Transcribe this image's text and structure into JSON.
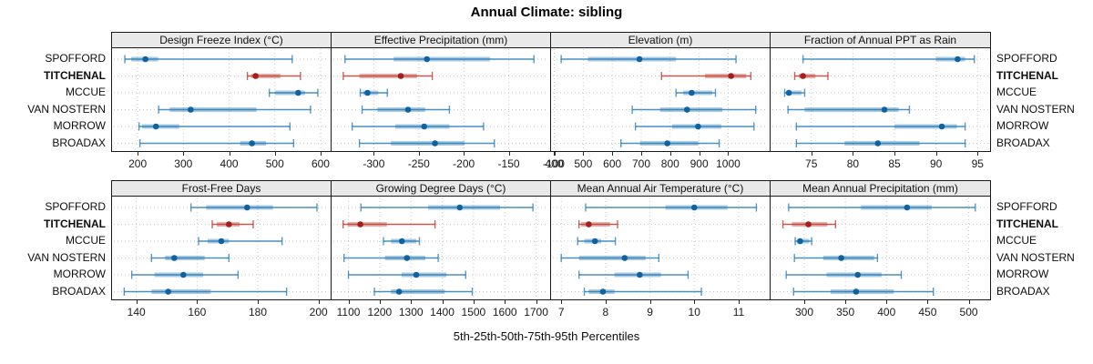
{
  "title": "Annual Climate: sibling",
  "caption": "5th-25th-50th-75th-95th Percentiles",
  "percentile_labels": [
    "5th",
    "25th",
    "50th",
    "75th",
    "95th"
  ],
  "sites": [
    "SPOFFORD",
    "TITCHENAL",
    "MCCUE",
    "VAN NOSTERN",
    "MORROW",
    "BROADAX"
  ],
  "highlight_site": "TITCHENAL",
  "colors": {
    "blue_line": "#1F77B4",
    "blue_dot": "#0F62A0",
    "red_line": "#BE3126",
    "red_dot": "#A31F1B",
    "grid": "#C9C9C9",
    "strip_bg": "#E9E9E9",
    "border": "#1a1a1a"
  },
  "chart_data": [
    {
      "type": "interval-dotplot",
      "title": "Design Freeze Index (°C)",
      "xlim": [
        144,
        622
      ],
      "ticks": [
        200,
        300,
        400,
        500,
        600
      ],
      "series": [
        {
          "name": "SPOFFORD",
          "values": [
            172,
            186,
            217,
            245,
            538
          ]
        },
        {
          "name": "TITCHENAL",
          "values": [
            440,
            448,
            458,
            512,
            556
          ]
        },
        {
          "name": "MCCUE",
          "values": [
            488,
            500,
            551,
            566,
            594
          ]
        },
        {
          "name": "VAN NOSTERN",
          "values": [
            246,
            270,
            316,
            460,
            578
          ]
        },
        {
          "name": "MORROW",
          "values": [
            203,
            210,
            240,
            291,
            533
          ]
        },
        {
          "name": "BROADAX",
          "values": [
            205,
            424,
            450,
            481,
            541
          ]
        }
      ]
    },
    {
      "type": "interval-dotplot",
      "title": "Effective Precipitation (mm)",
      "xlim": [
        -347,
        -104
      ],
      "ticks": [
        -300,
        -250,
        -200,
        -150,
        -100
      ],
      "series": [
        {
          "name": "SPOFFORD",
          "values": [
            -332,
            -278,
            -241,
            -171,
            -122
          ]
        },
        {
          "name": "TITCHENAL",
          "values": [
            -334,
            -316,
            -270,
            -252,
            -235
          ]
        },
        {
          "name": "MCCUE",
          "values": [
            -315,
            -312,
            -307,
            -295,
            -285
          ]
        },
        {
          "name": "VAN NOSTERN",
          "values": [
            -313,
            -296,
            -262,
            -243,
            -216
          ]
        },
        {
          "name": "MORROW",
          "values": [
            -324,
            -276,
            -244,
            -216,
            -178
          ]
        },
        {
          "name": "BROADAX",
          "values": [
            -316,
            -281,
            -232,
            -199,
            -166
          ]
        }
      ]
    },
    {
      "type": "interval-dotplot",
      "title": "Elevation (m)",
      "xlim": [
        389,
        1143
      ],
      "ticks": [
        400,
        500,
        600,
        700,
        800,
        900,
        1000
      ],
      "series": [
        {
          "name": "SPOFFORD",
          "values": [
            424,
            516,
            694,
            820,
            1027
          ]
        },
        {
          "name": "TITCHENAL",
          "values": [
            770,
            920,
            1010,
            1062,
            1078
          ]
        },
        {
          "name": "MCCUE",
          "values": [
            820,
            845,
            874,
            945,
            956
          ]
        },
        {
          "name": "VAN NOSTERN",
          "values": [
            669,
            765,
            858,
            980,
            1095
          ]
        },
        {
          "name": "MORROW",
          "values": [
            680,
            807,
            896,
            976,
            1089
          ]
        },
        {
          "name": "BROADAX",
          "values": [
            630,
            696,
            790,
            897,
            969
          ]
        }
      ]
    },
    {
      "type": "interval-dotplot",
      "title": "Fraction of Annual PPT as Rain",
      "xlim": [
        70.1,
        96.5
      ],
      "ticks": [
        75,
        80,
        85,
        90,
        95
      ],
      "series": [
        {
          "name": "SPOFFORD",
          "values": [
            74,
            90,
            92.6,
            93.5,
            94.6
          ]
        },
        {
          "name": "TITCHENAL",
          "values": [
            73,
            73.5,
            74,
            75.5,
            77
          ]
        },
        {
          "name": "MCCUE",
          "values": [
            71.8,
            72,
            72.3,
            73.8,
            74.2
          ]
        },
        {
          "name": "VAN NOSTERN",
          "values": [
            72.2,
            74.2,
            83.8,
            85.5,
            86.8
          ]
        },
        {
          "name": "MORROW",
          "values": [
            73.2,
            85,
            90.7,
            92.5,
            93.5
          ]
        },
        {
          "name": "BROADAX",
          "values": [
            73.2,
            79,
            83,
            88,
            93.5
          ]
        }
      ]
    },
    {
      "type": "interval-dotplot",
      "title": "Frost-Free Days",
      "xlim": [
        132,
        204
      ],
      "ticks": [
        140,
        160,
        180,
        200
      ],
      "series": [
        {
          "name": "SPOFFORD",
          "values": [
            158,
            163,
            176.5,
            185,
            199.5
          ]
        },
        {
          "name": "TITCHENAL",
          "values": [
            165,
            166.5,
            170.5,
            174,
            178.5
          ]
        },
        {
          "name": "MCCUE",
          "values": [
            160.5,
            163.5,
            168,
            170.5,
            188
          ]
        },
        {
          "name": "VAN NOSTERN",
          "values": [
            145,
            149.5,
            152.5,
            162.5,
            170.5
          ]
        },
        {
          "name": "MORROW",
          "values": [
            138.5,
            146,
            155.5,
            162,
            173.5
          ]
        },
        {
          "name": "BROADAX",
          "values": [
            136,
            145,
            150.5,
            164.5,
            189.5
          ]
        }
      ]
    },
    {
      "type": "interval-dotplot",
      "title": "Growing Degree Days (°C)",
      "xlim": [
        1046,
        1745
      ],
      "ticks": [
        1100,
        1200,
        1300,
        1400,
        1500,
        1600,
        1700
      ],
      "series": [
        {
          "name": "SPOFFORD",
          "values": [
            1140,
            1355,
            1456,
            1585,
            1690
          ]
        },
        {
          "name": "TITCHENAL",
          "values": [
            1083,
            1097,
            1138,
            1223,
            1377
          ]
        },
        {
          "name": "MCCUE",
          "values": [
            1212,
            1236,
            1271,
            1317,
            1327
          ]
        },
        {
          "name": "VAN NOSTERN",
          "values": [
            1086,
            1217,
            1287,
            1346,
            1387
          ]
        },
        {
          "name": "MORROW",
          "values": [
            1100,
            1270,
            1317,
            1413,
            1475
          ]
        },
        {
          "name": "BROADAX",
          "values": [
            1183,
            1236,
            1262,
            1408,
            1496
          ]
        }
      ]
    },
    {
      "type": "interval-dotplot",
      "title": "Mean Annual Air Temperature (°C)",
      "xlim": [
        6.77,
        11.7
      ],
      "ticks": [
        7,
        8,
        9,
        10,
        11
      ],
      "series": [
        {
          "name": "SPOFFORD",
          "values": [
            7.55,
            9.35,
            10.0,
            10.75,
            11.4
          ]
        },
        {
          "name": "TITCHENAL",
          "values": [
            7.4,
            7.45,
            7.62,
            8.1,
            8.27
          ]
        },
        {
          "name": "MCCUE",
          "values": [
            7.37,
            7.52,
            7.76,
            7.9,
            8.22
          ]
        },
        {
          "name": "VAN NOSTERN",
          "values": [
            7.0,
            7.4,
            8.43,
            8.9,
            9.2
          ]
        },
        {
          "name": "MORROW",
          "values": [
            7.4,
            8.2,
            8.77,
            9.25,
            9.86
          ]
        },
        {
          "name": "BROADAX",
          "values": [
            7.52,
            7.62,
            7.94,
            8.2,
            10.16
          ]
        }
      ]
    },
    {
      "type": "interval-dotplot",
      "title": "Mean Annual Precipitation (mm)",
      "xlim": [
        259,
        526
      ],
      "ticks": [
        300,
        350,
        400,
        450,
        500
      ],
      "series": [
        {
          "name": "SPOFFORD",
          "values": [
            281,
            369,
            425,
            455,
            508
          ]
        },
        {
          "name": "TITCHENAL",
          "values": [
            274,
            285,
            305,
            328,
            338
          ]
        },
        {
          "name": "MCCUE",
          "values": [
            289,
            291,
            295,
            306,
            309
          ]
        },
        {
          "name": "VAN NOSTERN",
          "values": [
            288,
            323,
            345,
            385,
            389
          ]
        },
        {
          "name": "MORROW",
          "values": [
            278,
            327,
            365,
            394,
            418
          ]
        },
        {
          "name": "BROADAX",
          "values": [
            287,
            332,
            363,
            409,
            457
          ]
        }
      ]
    }
  ]
}
